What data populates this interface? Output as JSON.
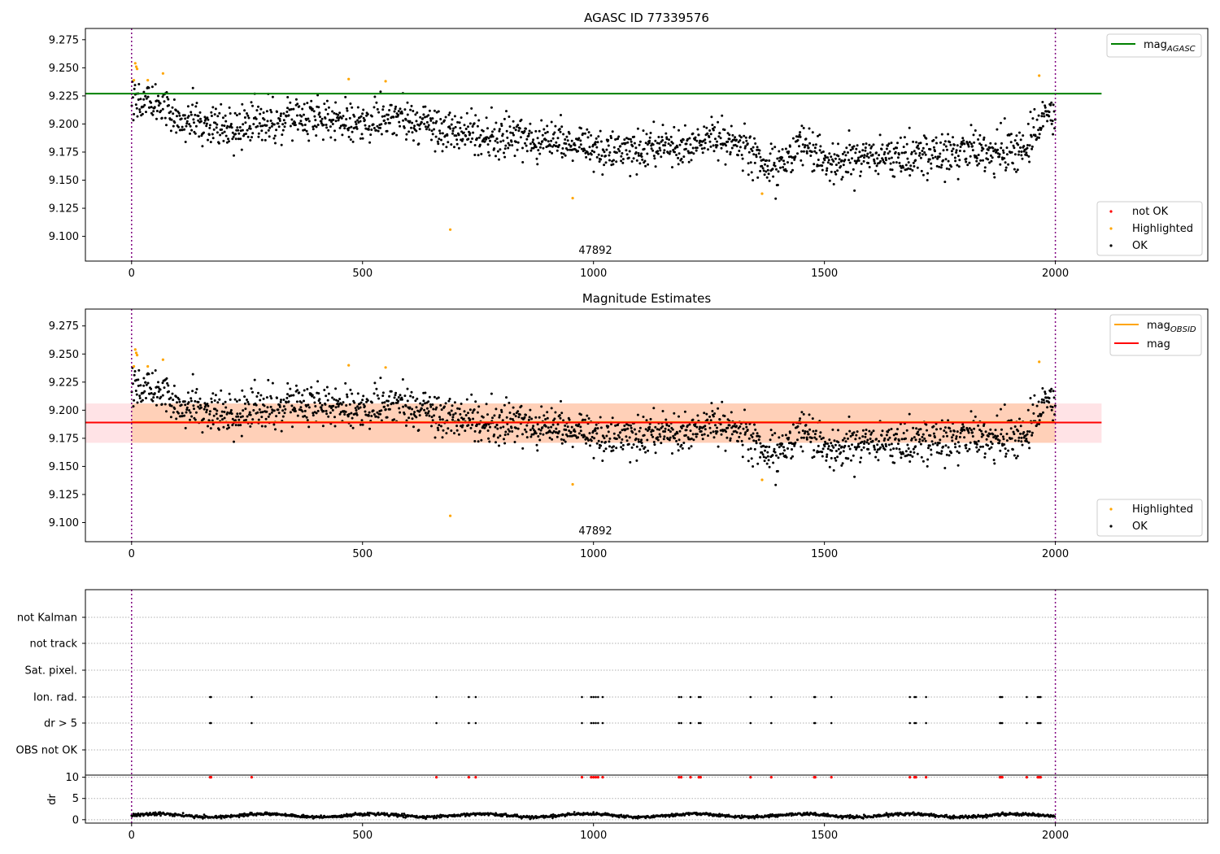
{
  "chart_data": [
    {
      "type": "scatter",
      "title": "AGASC ID 77339576",
      "annotation": "47892",
      "xlim": [
        -100,
        2330
      ],
      "ylim": [
        9.078,
        9.285
      ],
      "xticks": [
        0,
        500,
        1000,
        1500,
        2000
      ],
      "yticks": [
        9.1,
        9.125,
        9.15,
        9.175,
        9.2,
        9.225,
        9.25,
        9.275
      ],
      "vlines": [
        0,
        2000
      ],
      "hline": {
        "name": "mag_AGASC",
        "value": 9.227,
        "x_range": [
          -100,
          2100
        ],
        "color": "#008000"
      },
      "legend_lines": [
        {
          "label": "mag",
          "sub": "AGASC",
          "color": "#008000"
        }
      ],
      "legend_points": [
        {
          "label": "not OK",
          "color": "#ff0000"
        },
        {
          "label": "Highlighted",
          "color": "#ffa500"
        },
        {
          "label": "OK",
          "color": "#000000"
        }
      ],
      "highlighted": {
        "x": [
          5,
          8,
          10,
          12,
          35,
          68,
          470,
          550,
          690,
          955,
          1365,
          1965
        ],
        "y": [
          9.239,
          9.254,
          9.251,
          9.249,
          9.239,
          9.245,
          9.24,
          9.238,
          9.106,
          9.134,
          9.138,
          9.243
        ]
      },
      "ok_trend": {
        "x": [
          0,
          60,
          100,
          200,
          300,
          400,
          500,
          600,
          690,
          800,
          900,
          1000,
          1100,
          1200,
          1300,
          1330,
          1400,
          1450,
          1500,
          1600,
          1700,
          1800,
          1900,
          1940,
          1960,
          1985,
          2000
        ],
        "y": [
          9.222,
          9.218,
          9.205,
          9.196,
          9.201,
          9.207,
          9.2,
          9.203,
          9.193,
          9.188,
          9.184,
          9.178,
          9.178,
          9.18,
          9.186,
          9.178,
          9.158,
          9.185,
          9.168,
          9.17,
          9.172,
          9.178,
          9.174,
          9.18,
          9.195,
          9.215,
          9.2
        ],
        "count": 1800,
        "noise": 0.009
      }
    },
    {
      "type": "scatter",
      "title": "Magnitude Estimates",
      "annotation": "47892",
      "xlim": [
        -100,
        2330
      ],
      "ylim": [
        9.083,
        9.29
      ],
      "xticks": [
        0,
        500,
        1000,
        1500,
        2000
      ],
      "yticks": [
        9.1,
        9.125,
        9.15,
        9.175,
        9.2,
        9.225,
        9.25,
        9.275
      ],
      "vlines": [
        0,
        2000
      ],
      "band": {
        "lower": 9.171,
        "upper": 9.206,
        "x_range": [
          -100,
          2100
        ],
        "color": "#ffb0b8"
      },
      "band_obsid": {
        "lower": 9.171,
        "upper": 9.206,
        "x_range": [
          0,
          2000
        ],
        "color": "#ffa550"
      },
      "hline_obsid": {
        "value": 9.1895,
        "x_range": [
          0,
          2000
        ],
        "color": "#ffa500"
      },
      "hline": {
        "value": 9.189,
        "x_range": [
          -100,
          2100
        ],
        "color": "#ff0000"
      },
      "legend_lines": [
        {
          "label": "mag",
          "sub": "OBSID",
          "color": "#ffa500"
        },
        {
          "label": "mag",
          "sub": "",
          "color": "#ff0000"
        }
      ],
      "legend_points": [
        {
          "label": "Highlighted",
          "color": "#ffa500"
        },
        {
          "label": "OK",
          "color": "#000000"
        }
      ],
      "highlighted": {
        "x": [
          5,
          8,
          10,
          12,
          35,
          68,
          470,
          550,
          690,
          955,
          1365,
          1965
        ],
        "y": [
          9.239,
          9.254,
          9.251,
          9.249,
          9.239,
          9.245,
          9.24,
          9.238,
          9.106,
          9.134,
          9.138,
          9.243
        ]
      }
    },
    {
      "type": "scatter",
      "xlim": [
        -100,
        2330
      ],
      "xticks": [
        0,
        500,
        1000,
        1500,
        2000
      ],
      "vlines": [
        0,
        2000
      ],
      "flag_rows": [
        "not Kalman",
        "not track",
        "Sat. pixel.",
        "Ion. rad.",
        "dr > 5",
        "OBS not OK"
      ],
      "flagged_x": [
        170,
        172,
        260,
        660,
        730,
        745,
        975,
        995,
        1000,
        1005,
        1010,
        1020,
        1185,
        1190,
        1210,
        1228,
        1232,
        1340,
        1385,
        1478,
        1480,
        1515,
        1685,
        1695,
        1698,
        1720,
        1880,
        1882,
        1885,
        1938,
        1962,
        1965,
        1968
      ],
      "flagged_rows": [
        "Ion. rad.",
        "dr > 5"
      ],
      "dr": {
        "ylabel": "dr",
        "yticks": [
          0,
          5,
          10
        ],
        "ylim": [
          -0.8,
          10.5
        ],
        "outlier_value": 10,
        "outlier_color": "#ff0000",
        "typical": 1.0,
        "spread": 0.6
      }
    }
  ]
}
